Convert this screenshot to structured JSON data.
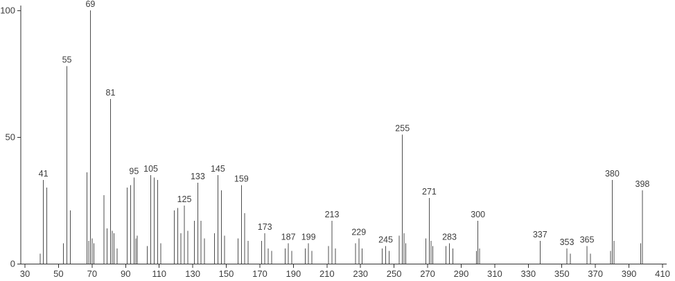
{
  "chart_data": {
    "type": "bar",
    "subtype": "mass-spectrum-stick-plot",
    "title": "",
    "xlabel": "",
    "ylabel": "",
    "xlim": [
      30,
      410
    ],
    "ylim": [
      0,
      100
    ],
    "x_ticks": [
      30,
      50,
      70,
      90,
      110,
      130,
      150,
      170,
      190,
      210,
      230,
      250,
      270,
      290,
      310,
      330,
      350,
      370,
      390,
      410
    ],
    "y_ticks": [
      0,
      50,
      100
    ],
    "grid": false,
    "legend": false,
    "line_color": "#4d4d4d",
    "axis_color": "#2f2f2f",
    "text_color": "#3c3c3c",
    "background_color": "#ffffff",
    "peaks": [
      {
        "m": 39,
        "i": 4
      },
      {
        "m": 41,
        "i": 33,
        "label": "41"
      },
      {
        "m": 43,
        "i": 30
      },
      {
        "m": 53,
        "i": 8
      },
      {
        "m": 55,
        "i": 78,
        "label": "55"
      },
      {
        "m": 57,
        "i": 21
      },
      {
        "m": 67,
        "i": 36
      },
      {
        "m": 68,
        "i": 9
      },
      {
        "m": 69,
        "i": 100,
        "label": "69"
      },
      {
        "m": 70,
        "i": 10
      },
      {
        "m": 71,
        "i": 8
      },
      {
        "m": 77,
        "i": 27
      },
      {
        "m": 79,
        "i": 14
      },
      {
        "m": 81,
        "i": 65,
        "label": "81"
      },
      {
        "m": 82,
        "i": 13
      },
      {
        "m": 83,
        "i": 12
      },
      {
        "m": 85,
        "i": 6
      },
      {
        "m": 91,
        "i": 30
      },
      {
        "m": 93,
        "i": 31
      },
      {
        "m": 95,
        "i": 34,
        "label": "95"
      },
      {
        "m": 96,
        "i": 10
      },
      {
        "m": 97,
        "i": 11
      },
      {
        "m": 103,
        "i": 7
      },
      {
        "m": 105,
        "i": 35,
        "label": "105"
      },
      {
        "m": 107,
        "i": 34
      },
      {
        "m": 109,
        "i": 33
      },
      {
        "m": 111,
        "i": 8
      },
      {
        "m": 119,
        "i": 21
      },
      {
        "m": 121,
        "i": 22
      },
      {
        "m": 123,
        "i": 12
      },
      {
        "m": 125,
        "i": 23,
        "label": "125"
      },
      {
        "m": 127,
        "i": 13
      },
      {
        "m": 131,
        "i": 17
      },
      {
        "m": 133,
        "i": 32,
        "label": "133"
      },
      {
        "m": 135,
        "i": 17
      },
      {
        "m": 137,
        "i": 10
      },
      {
        "m": 143,
        "i": 12
      },
      {
        "m": 145,
        "i": 35,
        "label": "145"
      },
      {
        "m": 147,
        "i": 29
      },
      {
        "m": 149,
        "i": 11
      },
      {
        "m": 157,
        "i": 10
      },
      {
        "m": 159,
        "i": 31,
        "label": "159"
      },
      {
        "m": 161,
        "i": 20
      },
      {
        "m": 163,
        "i": 9
      },
      {
        "m": 171,
        "i": 9
      },
      {
        "m": 173,
        "i": 12,
        "label": "173"
      },
      {
        "m": 175,
        "i": 6
      },
      {
        "m": 177,
        "i": 5
      },
      {
        "m": 185,
        "i": 6
      },
      {
        "m": 187,
        "i": 8,
        "label": "187"
      },
      {
        "m": 189,
        "i": 5
      },
      {
        "m": 197,
        "i": 6
      },
      {
        "m": 199,
        "i": 8,
        "label": "199"
      },
      {
        "m": 201,
        "i": 5
      },
      {
        "m": 211,
        "i": 7
      },
      {
        "m": 213,
        "i": 17,
        "label": "213"
      },
      {
        "m": 215,
        "i": 6
      },
      {
        "m": 227,
        "i": 8
      },
      {
        "m": 229,
        "i": 10,
        "label": "229"
      },
      {
        "m": 231,
        "i": 6
      },
      {
        "m": 243,
        "i": 6
      },
      {
        "m": 245,
        "i": 7,
        "label": "245"
      },
      {
        "m": 247,
        "i": 5
      },
      {
        "m": 253,
        "i": 11
      },
      {
        "m": 255,
        "i": 51,
        "label": "255"
      },
      {
        "m": 256,
        "i": 12
      },
      {
        "m": 257,
        "i": 8
      },
      {
        "m": 269,
        "i": 10
      },
      {
        "m": 271,
        "i": 26,
        "label": "271"
      },
      {
        "m": 272,
        "i": 9
      },
      {
        "m": 273,
        "i": 7
      },
      {
        "m": 281,
        "i": 7
      },
      {
        "m": 283,
        "i": 8,
        "label": "283"
      },
      {
        "m": 285,
        "i": 6
      },
      {
        "m": 299,
        "i": 5
      },
      {
        "m": 300,
        "i": 17,
        "label": "300"
      },
      {
        "m": 301,
        "i": 6
      },
      {
        "m": 337,
        "i": 9,
        "label": "337"
      },
      {
        "m": 353,
        "i": 6,
        "label": "353"
      },
      {
        "m": 355,
        "i": 4
      },
      {
        "m": 365,
        "i": 7,
        "label": "365"
      },
      {
        "m": 367,
        "i": 4
      },
      {
        "m": 379,
        "i": 5
      },
      {
        "m": 380,
        "i": 33,
        "label": "380"
      },
      {
        "m": 381,
        "i": 9
      },
      {
        "m": 397,
        "i": 8
      },
      {
        "m": 398,
        "i": 29,
        "label": "398"
      }
    ]
  }
}
